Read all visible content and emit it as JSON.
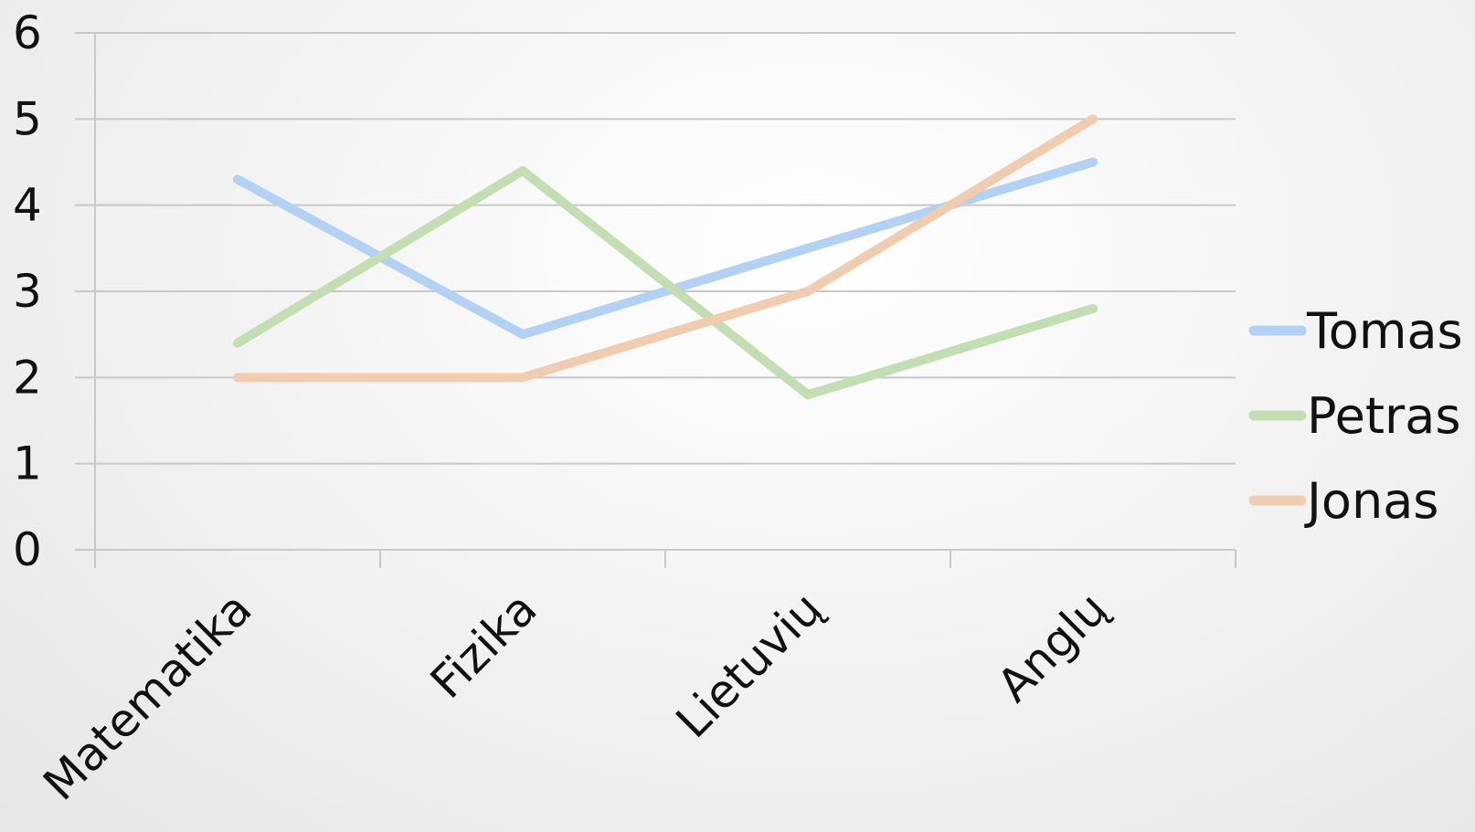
{
  "chart_data": {
    "type": "line",
    "title": "",
    "xlabel": "",
    "ylabel": "",
    "categories": [
      "Matematika",
      "Fizika",
      "Lietuvių",
      "Anglų"
    ],
    "ylim": [
      0,
      6
    ],
    "yticks": [
      0,
      1,
      2,
      3,
      4,
      5,
      6
    ],
    "grid": true,
    "legend_position": "right",
    "series": [
      {
        "name": "Tomas",
        "color": "#b3d1f2",
        "values": [
          4.3,
          2.5,
          3.5,
          4.5
        ]
      },
      {
        "name": "Petras",
        "color": "#c4deb4",
        "values": [
          2.4,
          4.4,
          1.8,
          2.8
        ]
      },
      {
        "name": "Jonas",
        "color": "#f0cdb0",
        "values": [
          2.0,
          2.0,
          3.0,
          5.0
        ]
      }
    ]
  }
}
